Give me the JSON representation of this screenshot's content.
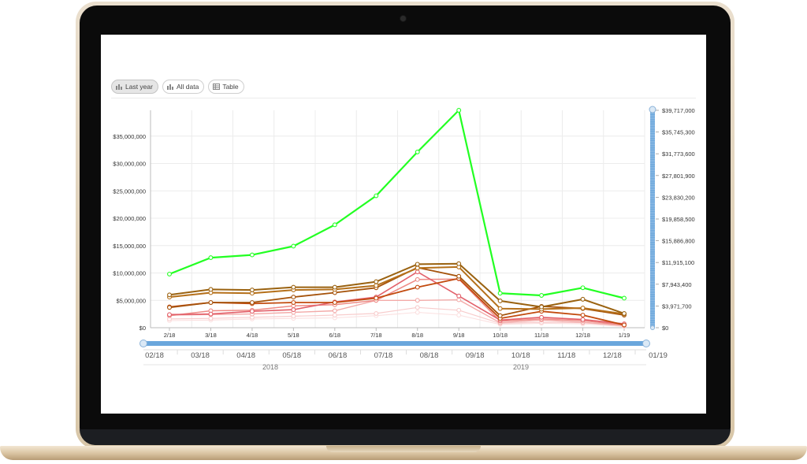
{
  "tabs": [
    {
      "label": "Last year",
      "icon": "bar-chart-icon",
      "active": true
    },
    {
      "label": "All data",
      "icon": "bar-chart-icon",
      "active": false
    },
    {
      "label": "Table",
      "icon": "table-icon",
      "active": false
    }
  ],
  "colors": {
    "accent_line": "#22ff22",
    "navigator": "#6aa6dc",
    "series_browns": [
      "#9a6210",
      "#a5520a",
      "#b5701a",
      "#c24a0e"
    ],
    "series_pinks": [
      "#e2606a",
      "#ee8a85",
      "#f3aaa8",
      "#f8cccc",
      "#fbe0e0"
    ]
  },
  "chart_data": {
    "type": "line",
    "categories": [
      "2/18",
      "3/18",
      "4/18",
      "5/18",
      "6/18",
      "7/18",
      "8/18",
      "9/18",
      "10/18",
      "11/18",
      "12/18",
      "1/19"
    ],
    "y_axis": {
      "min": 0,
      "max": 39717000,
      "ticks": [
        "$0",
        "$5,000,000",
        "$10,000,000",
        "$15,000,000",
        "$20,000,000",
        "$25,000,000",
        "$30,000,000",
        "$35,000,000"
      ]
    },
    "right_axis": {
      "ticks": [
        "$0",
        "$3,971,700",
        "$7,943,400",
        "$11,915,100",
        "$15,886,800",
        "$19,858,500",
        "$23,830,200",
        "$27,801,900",
        "$31,773,600",
        "$35,745,300",
        "$39,717,000"
      ]
    },
    "navigator": {
      "ticks": [
        "02/18",
        "03/18",
        "04/18",
        "05/18",
        "06/18",
        "07/18",
        "08/18",
        "09/18",
        "10/18",
        "11/18",
        "12/18",
        "01/19"
      ],
      "years": [
        "2018",
        "2019"
      ]
    },
    "grid": true,
    "series": [
      {
        "values": [
          9800000,
          12800000,
          13300000,
          14900000,
          18800000,
          24100000,
          32100000,
          39717000,
          6300000,
          5900000,
          7300000,
          5400000
        ],
        "color": "#22ff22",
        "width": 2.2
      },
      {
        "values": [
          6000000,
          7000000,
          6900000,
          7400000,
          7400000,
          8400000,
          11600000,
          11700000,
          4900000,
          3800000,
          5200000,
          2600000
        ],
        "color": "#9a6210",
        "width": 2
      },
      {
        "values": [
          5600000,
          6400000,
          6300000,
          6900000,
          7000000,
          7700000,
          10900000,
          11100000,
          3500000,
          3400000,
          3600000,
          2500000
        ],
        "color": "#b5701a",
        "width": 2
      },
      {
        "values": [
          3700000,
          4600000,
          4600000,
          5600000,
          6400000,
          7300000,
          11000000,
          9400000,
          2200000,
          3900000,
          3500000,
          2300000
        ],
        "color": "#a5520a",
        "width": 1.8
      },
      {
        "values": [
          3800000,
          4600000,
          4400000,
          4600000,
          4600000,
          5400000,
          7400000,
          9000000,
          1700000,
          3000000,
          2300000,
          500000
        ],
        "color": "#c24a0e",
        "width": 1.8
      },
      {
        "values": [
          2400000,
          2500000,
          3000000,
          3300000,
          4700000,
          5600000,
          10200000,
          5800000,
          1400000,
          1900000,
          1500000,
          700000
        ],
        "color": "#e2606a",
        "width": 1.6
      },
      {
        "values": [
          2200000,
          3100000,
          3200000,
          4000000,
          4200000,
          5000000,
          8800000,
          8900000,
          1200000,
          1600000,
          1300000,
          500000
        ],
        "color": "#ee8a85",
        "width": 1.5
      },
      {
        "values": [
          2300000,
          2400000,
          2500000,
          2800000,
          3100000,
          5000000,
          5000000,
          5100000,
          900000,
          1400000,
          1000000,
          400000
        ],
        "color": "#f3aaa8",
        "width": 1.4
      },
      {
        "values": [
          1600000,
          1700000,
          1900000,
          2100000,
          2300000,
          2600000,
          3700000,
          3200000,
          800000,
          1000000,
          900000,
          300000
        ],
        "color": "#f8cccc",
        "width": 1.2
      },
      {
        "values": [
          1300000,
          1400000,
          1600000,
          1700000,
          1800000,
          2200000,
          2800000,
          2300000,
          600000,
          800000,
          700000,
          200000
        ],
        "color": "#fbe0e0",
        "width": 1.1
      }
    ]
  }
}
